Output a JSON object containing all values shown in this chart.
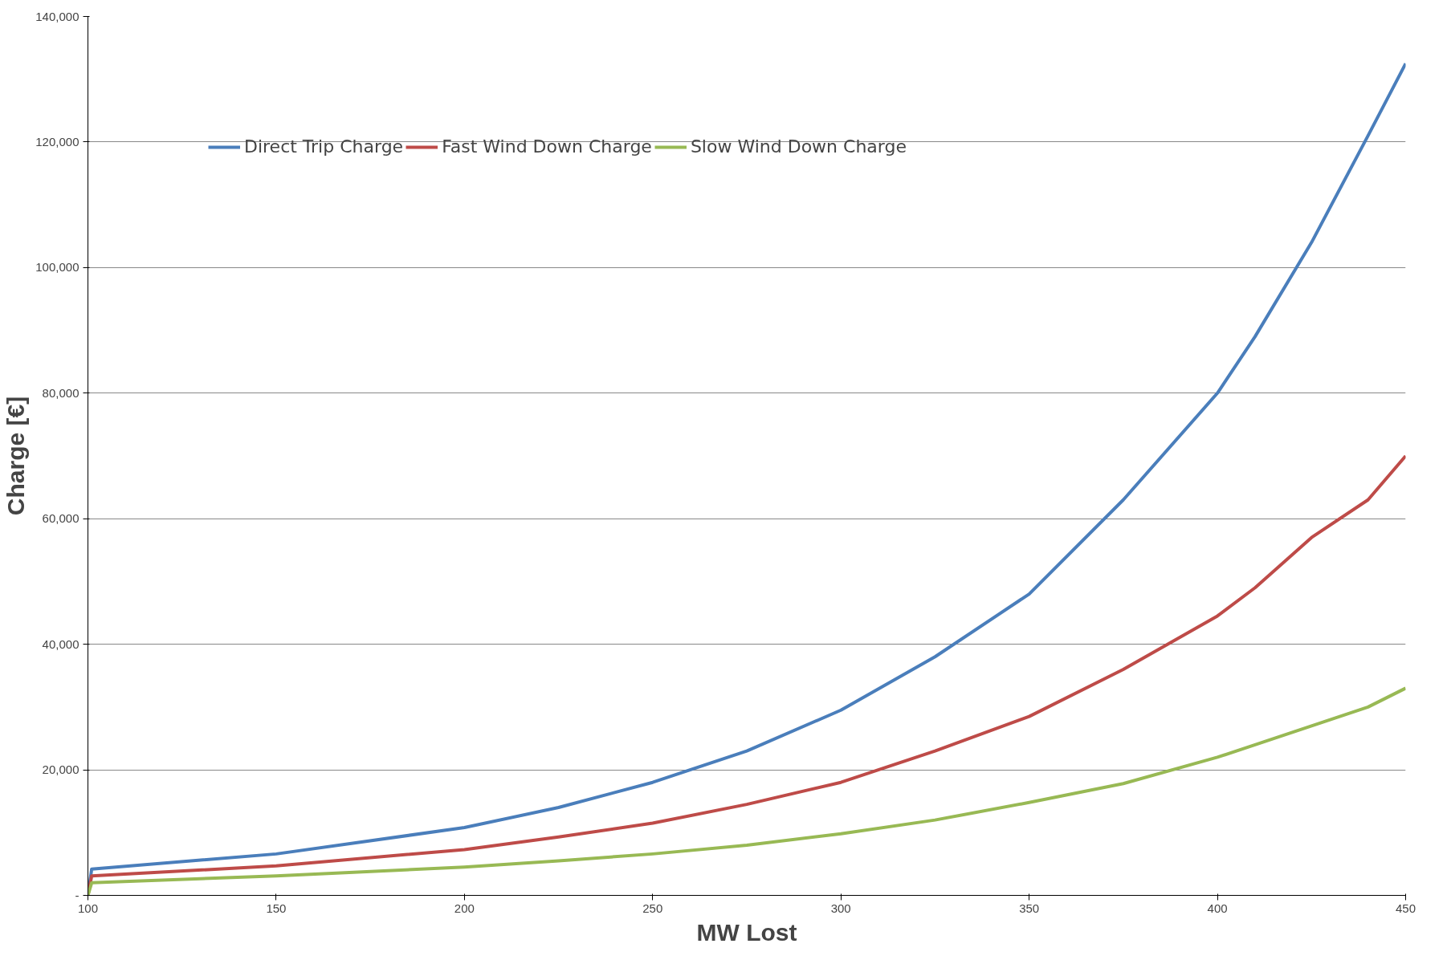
{
  "chart_data": {
    "type": "line",
    "xlabel": "MW Lost",
    "ylabel": "Charge [€]",
    "xlim": [
      100,
      450
    ],
    "xticks": [
      100,
      150,
      200,
      250,
      300,
      350,
      400,
      450
    ],
    "ylim": [
      0,
      140000
    ],
    "yticks": [
      {
        "value": 0,
        "label": "-"
      },
      {
        "value": 20000,
        "label": "20,000"
      },
      {
        "value": 40000,
        "label": "40,000"
      },
      {
        "value": 60000,
        "label": "60,000"
      },
      {
        "value": 80000,
        "label": "80,000"
      },
      {
        "value": 100000,
        "label": "100,000"
      },
      {
        "value": 120000,
        "label": "120,000"
      },
      {
        "value": 140000,
        "label": "140,000"
      }
    ],
    "grid": "y",
    "legend": "top left",
    "marker": "none",
    "line_style": "solid",
    "x": [
      100,
      101,
      150,
      200,
      225,
      250,
      275,
      300,
      325,
      350,
      375,
      400,
      410,
      425,
      440,
      450
    ],
    "series": [
      {
        "name": "Direct Trip Charge",
        "color": "#4a7ebb",
        "values": [
          0,
          4200,
          6600,
          10800,
          14000,
          18000,
          23000,
          29500,
          38000,
          48000,
          63000,
          80000,
          89000,
          104000,
          121000,
          132500
        ]
      },
      {
        "name": "Fast Wind Down Charge",
        "color": "#be4b48",
        "values": [
          0,
          3100,
          4700,
          7300,
          9300,
          11500,
          14500,
          18000,
          23000,
          28500,
          36000,
          44500,
          49000,
          57000,
          63000,
          70000
        ]
      },
      {
        "name": "Slow Wind Down Charge",
        "color": "#98b954",
        "values": [
          0,
          2000,
          3100,
          4500,
          5500,
          6600,
          8000,
          9800,
          12000,
          14800,
          17800,
          22000,
          24000,
          27000,
          30000,
          33000
        ]
      }
    ]
  }
}
